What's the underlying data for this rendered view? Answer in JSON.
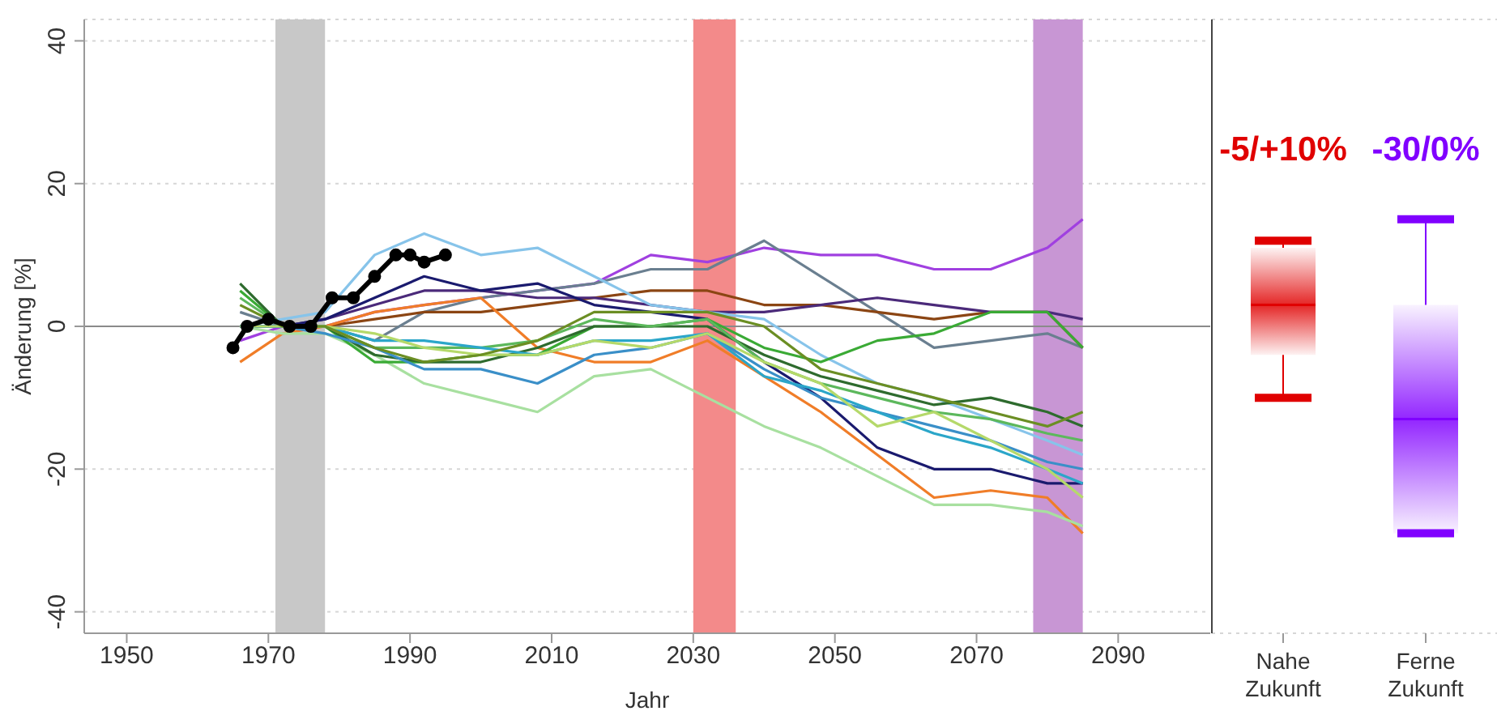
{
  "chart_data": [
    {
      "type": "line",
      "xlabel": "Jahr",
      "ylabel": "Änderung [%]",
      "xlim": [
        1944,
        2103
      ],
      "xticks": [
        1950,
        1970,
        1990,
        2010,
        2030,
        2050,
        2070,
        2090
      ],
      "ylim": [
        -43,
        43
      ],
      "yticks": [
        -40,
        -20,
        0,
        20,
        40
      ],
      "grid": "y",
      "bands": [
        {
          "axis": "x",
          "from": 1971,
          "to": 1978,
          "color": "#c8c8c8"
        },
        {
          "axis": "x",
          "from": 2030,
          "to": 2036,
          "color": "#f38a8a"
        },
        {
          "axis": "x",
          "from": 2078,
          "to": 2085,
          "color": "#c896d4"
        }
      ],
      "ref_lines": [
        {
          "axis": "y",
          "value": 0,
          "color": "#8a8a8a"
        }
      ],
      "x": [
        1966,
        1972,
        1978,
        1985,
        1992,
        2000,
        2008,
        2016,
        2024,
        2032,
        2040,
        2048,
        2056,
        2064,
        2072,
        2080,
        2085
      ],
      "series": [
        {
          "color": "#a040e0",
          "values": [
            -2,
            0,
            0,
            2,
            3,
            4,
            5,
            6,
            10,
            9,
            11,
            10,
            10,
            8,
            8,
            11,
            15
          ]
        },
        {
          "color": "#6a7f90",
          "values": [
            2,
            0,
            0,
            -2,
            2,
            4,
            5,
            6,
            8,
            8,
            12,
            7,
            2,
            -3,
            -2,
            -1,
            -3
          ]
        },
        {
          "color": "#8b4513",
          "values": [
            0,
            0,
            0,
            1,
            2,
            2,
            3,
            4,
            5,
            5,
            3,
            3,
            2,
            1,
            2,
            2,
            -3
          ]
        },
        {
          "color": "#4b2a7a",
          "values": [
            0,
            0,
            1,
            3,
            5,
            5,
            4,
            4,
            3,
            2,
            2,
            3,
            4,
            3,
            2,
            2,
            1
          ]
        },
        {
          "color": "#87c4ea",
          "values": [
            0,
            1,
            2,
            10,
            13,
            10,
            11,
            7,
            3,
            2,
            1,
            -4,
            -8,
            -10,
            -13,
            -16,
            -18
          ]
        },
        {
          "color": "#1a1a6e",
          "values": [
            0,
            0,
            1,
            4,
            7,
            5,
            6,
            3,
            2,
            1,
            -5,
            -10,
            -17,
            -20,
            -20,
            -22,
            -22
          ]
        },
        {
          "color": "#f07d28",
          "values": [
            -5,
            -1,
            0,
            2,
            3,
            4,
            -3,
            -5,
            -5,
            -2,
            -7,
            -12,
            -18,
            -24,
            -23,
            -24,
            -29
          ]
        },
        {
          "color": "#a8e0a0",
          "values": [
            0,
            -1,
            -1,
            -4,
            -8,
            -10,
            -12,
            -7,
            -6,
            -10,
            -14,
            -17,
            -21,
            -25,
            -25,
            -26,
            -28
          ]
        },
        {
          "color": "#3aaa35",
          "values": [
            5,
            0,
            0,
            -5,
            -5,
            -4,
            -4,
            0,
            0,
            1,
            -3,
            -5,
            -2,
            -1,
            2,
            2,
            -3
          ]
        },
        {
          "color": "#2e6b2e",
          "values": [
            6,
            0,
            0,
            -4,
            -5,
            -5,
            -3,
            0,
            0,
            0,
            -4,
            -7,
            -9,
            -11,
            -10,
            -12,
            -14
          ]
        },
        {
          "color": "#5cb85c",
          "values": [
            4,
            0,
            0,
            -3,
            -3,
            -3,
            -2,
            1,
            0,
            1,
            -5,
            -8,
            -10,
            -12,
            -13,
            -15,
            -16
          ]
        },
        {
          "color": "#3a8fc8",
          "values": [
            0,
            0,
            -1,
            -3,
            -6,
            -6,
            -8,
            -4,
            -3,
            -1,
            -6,
            -10,
            -12,
            -14,
            -16,
            -19,
            -20
          ]
        },
        {
          "color": "#2ba6c9",
          "values": [
            0,
            0,
            0,
            -2,
            -2,
            -3,
            -4,
            -2,
            -2,
            -1,
            -7,
            -9,
            -12,
            -15,
            -17,
            -20,
            -22
          ]
        },
        {
          "color": "#b5d96a",
          "values": [
            0,
            0,
            0,
            -1,
            -3,
            -4,
            -4,
            -2,
            -3,
            -1,
            -5,
            -8,
            -14,
            -12,
            -16,
            -20,
            -24
          ]
        },
        {
          "color": "#6b8e23",
          "values": [
            3,
            0,
            0,
            -3,
            -5,
            -4,
            -2,
            2,
            2,
            2,
            0,
            -6,
            -8,
            -10,
            -12,
            -14,
            -12
          ]
        },
        {
          "color": "#000000",
          "marker": "circle",
          "x": [
            1965,
            1967,
            1970,
            1973,
            1976,
            1979,
            1982,
            1985,
            1988,
            1990,
            1992,
            1995
          ],
          "values": [
            -3,
            0,
            1,
            0,
            0,
            4,
            4,
            7,
            10,
            10,
            9,
            10
          ]
        }
      ]
    },
    {
      "type": "box",
      "categories": [
        "Nahe Zukunft",
        "Ferne Zukunft"
      ],
      "colors": [
        "#e00000",
        "#8000ff"
      ],
      "ylim": [
        -43,
        43
      ],
      "yticks": [
        -40,
        -20,
        0,
        20,
        40
      ],
      "grid": "y",
      "tick_labels": "x",
      "boxes": [
        {
          "low": -10,
          "q1": -4,
          "median": 3,
          "q3": 11,
          "high": 12
        },
        {
          "low": -29,
          "q1": -29,
          "median": -13,
          "q3": 3,
          "high": 15
        }
      ],
      "annotations": [
        "-5/+10%",
        "-30/0%"
      ]
    }
  ]
}
